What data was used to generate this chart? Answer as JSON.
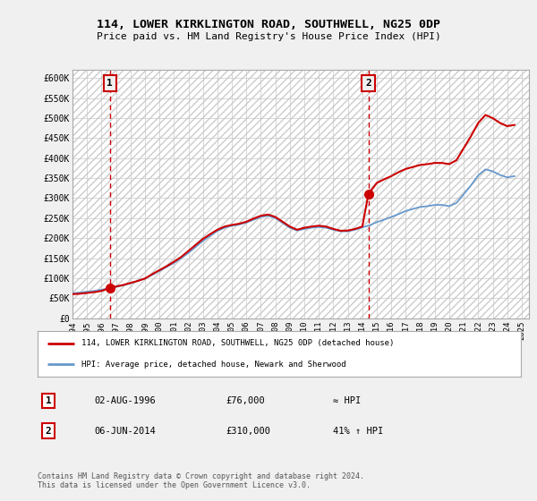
{
  "title": "114, LOWER KIRKLINGTON ROAD, SOUTHWELL, NG25 0DP",
  "subtitle": "Price paid vs. HM Land Registry's House Price Index (HPI)",
  "legend_line1": "114, LOWER KIRKLINGTON ROAD, SOUTHWELL, NG25 0DP (detached house)",
  "legend_line2": "HPI: Average price, detached house, Newark and Sherwood",
  "annotation1_label": "1",
  "annotation1_date": "02-AUG-1996",
  "annotation1_price": "£76,000",
  "annotation1_hpi": "≈ HPI",
  "annotation2_label": "2",
  "annotation2_date": "06-JUN-2014",
  "annotation2_price": "£310,000",
  "annotation2_hpi": "41% ↑ HPI",
  "footer": "Contains HM Land Registry data © Crown copyright and database right 2024.\nThis data is licensed under the Open Government Licence v3.0.",
  "bg_color": "#f0f0f0",
  "plot_bg_color": "#ffffff",
  "red_line_color": "#cc0000",
  "blue_line_color": "#6699cc",
  "marker_color": "#cc0000",
  "dashed_color": "#cc0000",
  "ylim": [
    0,
    620000
  ],
  "yticks": [
    0,
    50000,
    100000,
    150000,
    200000,
    250000,
    300000,
    350000,
    400000,
    450000,
    500000,
    550000,
    600000
  ],
  "ytick_labels": [
    "£0",
    "£50K",
    "£100K",
    "£150K",
    "£200K",
    "£250K",
    "£300K",
    "£350K",
    "£400K",
    "£450K",
    "£500K",
    "£550K",
    "£600K"
  ],
  "xlim_start": 1994.0,
  "xlim_end": 2025.5,
  "xticks": [
    1994,
    1995,
    1996,
    1997,
    1998,
    1999,
    2000,
    2001,
    2002,
    2003,
    2004,
    2005,
    2006,
    2007,
    2008,
    2009,
    2010,
    2011,
    2012,
    2013,
    2014,
    2015,
    2016,
    2017,
    2018,
    2019,
    2020,
    2021,
    2022,
    2023,
    2024,
    2025
  ],
  "sale1_x": 1996.58,
  "sale1_y": 76000,
  "sale2_x": 2014.42,
  "sale2_y": 310000,
  "hpi_data_x": [
    1994.0,
    1994.5,
    1995.0,
    1995.5,
    1996.0,
    1996.5,
    1997.0,
    1997.5,
    1998.0,
    1998.5,
    1999.0,
    1999.5,
    2000.0,
    2000.5,
    2001.0,
    2001.5,
    2002.0,
    2002.5,
    2003.0,
    2003.5,
    2004.0,
    2004.5,
    2005.0,
    2005.5,
    2006.0,
    2006.5,
    2007.0,
    2007.5,
    2008.0,
    2008.5,
    2009.0,
    2009.5,
    2010.0,
    2010.5,
    2011.0,
    2011.5,
    2012.0,
    2012.5,
    2013.0,
    2013.5,
    2014.0,
    2014.5,
    2015.0,
    2015.5,
    2016.0,
    2016.5,
    2017.0,
    2017.5,
    2018.0,
    2018.5,
    2019.0,
    2019.5,
    2020.0,
    2020.5,
    2021.0,
    2021.5,
    2022.0,
    2022.5,
    2023.0,
    2023.5,
    2024.0,
    2024.5
  ],
  "hpi_data_y": [
    62000,
    64000,
    66000,
    68000,
    71000,
    74000,
    78000,
    82000,
    87000,
    93000,
    99000,
    108000,
    118000,
    128000,
    138000,
    150000,
    163000,
    178000,
    193000,
    206000,
    218000,
    226000,
    231000,
    234000,
    239000,
    246000,
    253000,
    256000,
    250000,
    238000,
    226000,
    219000,
    223000,
    226000,
    228000,
    226000,
    221000,
    217000,
    217000,
    221000,
    227000,
    232000,
    240000,
    246000,
    253000,
    260000,
    268000,
    273000,
    278000,
    280000,
    283000,
    283000,
    280000,
    288000,
    310000,
    332000,
    357000,
    372000,
    367000,
    358000,
    352000,
    355000
  ],
  "price_line_x": [
    1994.0,
    1994.5,
    1995.0,
    1995.5,
    1996.0,
    1996.58,
    1997.0,
    1997.5,
    1998.0,
    1998.5,
    1999.0,
    1999.5,
    2000.0,
    2000.5,
    2001.0,
    2001.5,
    2002.0,
    2002.5,
    2003.0,
    2003.5,
    2004.0,
    2004.5,
    2005.0,
    2005.5,
    2006.0,
    2006.5,
    2007.0,
    2007.5,
    2008.0,
    2008.5,
    2009.0,
    2009.5,
    2010.0,
    2010.5,
    2011.0,
    2011.5,
    2012.0,
    2012.5,
    2013.0,
    2013.5,
    2014.0,
    2014.42,
    2015.0,
    2015.5,
    2016.0,
    2016.5,
    2017.0,
    2017.5,
    2018.0,
    2018.5,
    2019.0,
    2019.5,
    2020.0,
    2020.5,
    2021.0,
    2021.5,
    2022.0,
    2022.5,
    2023.0,
    2023.5,
    2024.0,
    2024.5
  ],
  "price_line_y": [
    60000,
    61000,
    63000,
    65000,
    68000,
    76000,
    79000,
    83000,
    88000,
    93000,
    99000,
    110000,
    120000,
    130000,
    141000,
    153000,
    168000,
    183000,
    198000,
    210000,
    221000,
    229000,
    233000,
    236000,
    241000,
    249000,
    256000,
    259000,
    253000,
    241000,
    229000,
    221000,
    226000,
    229000,
    231000,
    229000,
    223000,
    218500,
    219000,
    223000,
    229000,
    310000,
    338000,
    347000,
    355000,
    365000,
    373000,
    378000,
    383000,
    385000,
    388000,
    388000,
    385000,
    395000,
    425000,
    455000,
    488000,
    508000,
    500000,
    488000,
    480000,
    483000
  ]
}
